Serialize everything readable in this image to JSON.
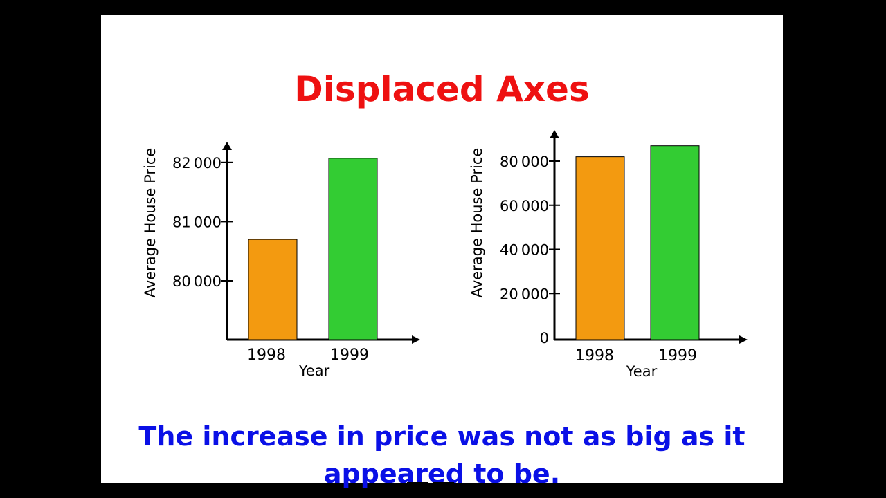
{
  "title": "Displaced Axes",
  "caption": "The increase in price was not as big as it appeared to be.",
  "colors": {
    "title": "#ee1111",
    "caption": "#0a10e6",
    "bar_1998": "#f39a10",
    "bar_1999": "#33cc33"
  },
  "chart_data": [
    {
      "type": "bar",
      "categories": [
        "1998",
        "1999"
      ],
      "values": [
        80700,
        82070
      ],
      "xlabel": "Year",
      "ylabel": "Average House Price",
      "yticks": [
        80000,
        81000,
        82000
      ],
      "ytick_labels": [
        "80000",
        "81000",
        "82000"
      ],
      "ylim": [
        79000,
        82300
      ],
      "grid": false
    },
    {
      "type": "bar",
      "categories": [
        "1998",
        "1999"
      ],
      "values": [
        82000,
        87000
      ],
      "xlabel": "Year",
      "ylabel": "Average House Price",
      "yticks": [
        0,
        20000,
        40000,
        60000,
        80000
      ],
      "ytick_labels": [
        "0",
        "20000",
        "40000",
        "60000",
        "80000"
      ],
      "ylim": [
        0,
        90000
      ],
      "grid": false
    }
  ]
}
